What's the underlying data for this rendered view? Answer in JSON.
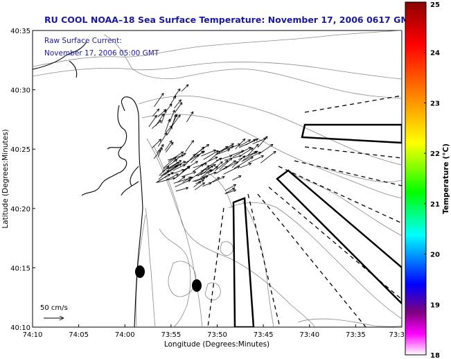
{
  "title": "RU COOL  NOAA–18  Sea Surface Temperature:  November 17, 2006 0617 GMT",
  "current_note": {
    "line1": "Raw Surface Current:",
    "line2": "November 17, 2006 05:00 GMT"
  },
  "scale_label": "50 cm/s",
  "axes": {
    "xlabel": "Longitude (Degrees:Minutes)",
    "ylabel": "Latitude (Degrees:Minutes)",
    "xticks": [
      "74:10",
      "74:05",
      "74:00",
      "73:55",
      "73:50",
      "73:45",
      "73:40",
      "73:35",
      "73:3"
    ],
    "yticks": [
      "40:35",
      "40:30",
      "40:25",
      "40:20",
      "40:15",
      "40:10"
    ]
  },
  "colorbar": {
    "label": "Temperature (°C)",
    "min": 18,
    "max": 25,
    "ticks": [
      "25",
      "24",
      "23",
      "22",
      "21",
      "20",
      "19",
      "18"
    ],
    "colors": [
      "#8b0000",
      "#ff0000",
      "#ff8000",
      "#ffff00",
      "#00ff00",
      "#00ffff",
      "#0000ff",
      "#800080",
      "#ff00ff",
      "#ffffff"
    ]
  }
}
